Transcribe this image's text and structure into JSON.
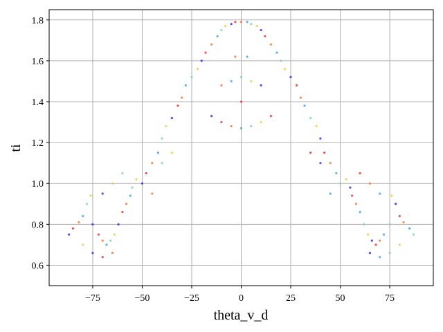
{
  "chart_data": {
    "type": "scatter",
    "title": "",
    "xlabel": "theta_v_d",
    "ylabel": "ti",
    "xlim": [
      -97,
      97
    ],
    "ylim": [
      0.5,
      1.85
    ],
    "grid": true,
    "xticks": [
      -75,
      -50,
      -25,
      0,
      25,
      50,
      75
    ],
    "xtick_labels": [
      "−75",
      "−50",
      "−25",
      "0",
      "25",
      "50",
      "75"
    ],
    "yticks": [
      0.6,
      0.8,
      1.0,
      1.2,
      1.4,
      1.6,
      1.8
    ],
    "ytick_labels": [
      "0.6",
      "0.8",
      "1.0",
      "1.2",
      "1.4",
      "1.6",
      "1.8"
    ],
    "colors": [
      "#3b2cf0",
      "#e83a2a",
      "#f07a3a",
      "#4aa3e8",
      "#7fd6b0",
      "#f2c94c"
    ],
    "points": [
      [
        -87,
        0.75
      ],
      [
        -85,
        0.78
      ],
      [
        -82,
        0.81
      ],
      [
        -80,
        0.84
      ],
      [
        -78,
        0.9
      ],
      [
        -76,
        0.94
      ],
      [
        -75,
        0.8
      ],
      [
        -72,
        0.75
      ],
      [
        -70,
        0.72
      ],
      [
        -68,
        0.7
      ],
      [
        -66,
        0.72
      ],
      [
        -64,
        0.75
      ],
      [
        -62,
        0.8
      ],
      [
        -60,
        0.86
      ],
      [
        -58,
        0.9
      ],
      [
        -56,
        0.94
      ],
      [
        -55,
        0.98
      ],
      [
        -53,
        1.02
      ],
      [
        -50,
        1.0
      ],
      [
        -48,
        1.05
      ],
      [
        -45,
        1.1
      ],
      [
        -42,
        1.15
      ],
      [
        -40,
        1.22
      ],
      [
        -38,
        1.28
      ],
      [
        -35,
        1.32
      ],
      [
        -32,
        1.38
      ],
      [
        -30,
        1.42
      ],
      [
        -28,
        1.48
      ],
      [
        -25,
        1.52
      ],
      [
        -22,
        1.56
      ],
      [
        -20,
        1.6
      ],
      [
        -18,
        1.64
      ],
      [
        -15,
        1.68
      ],
      [
        -12,
        1.72
      ],
      [
        -10,
        1.75
      ],
      [
        -8,
        1.77
      ],
      [
        -5,
        1.78
      ],
      [
        -3,
        1.79
      ],
      [
        0,
        1.79
      ],
      [
        3,
        1.79
      ],
      [
        5,
        1.78
      ],
      [
        8,
        1.77
      ],
      [
        10,
        1.75
      ],
      [
        12,
        1.72
      ],
      [
        15,
        1.68
      ],
      [
        18,
        1.64
      ],
      [
        20,
        1.6
      ],
      [
        22,
        1.56
      ],
      [
        25,
        1.52
      ],
      [
        28,
        1.48
      ],
      [
        30,
        1.42
      ],
      [
        32,
        1.38
      ],
      [
        35,
        1.32
      ],
      [
        38,
        1.28
      ],
      [
        40,
        1.22
      ],
      [
        42,
        1.15
      ],
      [
        45,
        1.1
      ],
      [
        48,
        1.05
      ],
      [
        50,
        1.0
      ],
      [
        53,
        1.02
      ],
      [
        55,
        0.98
      ],
      [
        56,
        0.94
      ],
      [
        58,
        0.9
      ],
      [
        60,
        0.86
      ],
      [
        62,
        0.8
      ],
      [
        64,
        0.75
      ],
      [
        66,
        0.72
      ],
      [
        68,
        0.7
      ],
      [
        70,
        0.72
      ],
      [
        72,
        0.75
      ],
      [
        75,
        0.8
      ],
      [
        76,
        0.94
      ],
      [
        78,
        0.9
      ],
      [
        80,
        0.84
      ],
      [
        82,
        0.81
      ],
      [
        85,
        0.78
      ],
      [
        87,
        0.75
      ],
      [
        -80,
        0.7
      ],
      [
        -75,
        0.66
      ],
      [
        -70,
        0.64
      ],
      [
        -65,
        0.66
      ],
      [
        70,
        0.64
      ],
      [
        75,
        0.66
      ],
      [
        80,
        0.7
      ],
      [
        65,
        0.66
      ],
      [
        -10,
        1.3
      ],
      [
        -5,
        1.28
      ],
      [
        0,
        1.27
      ],
      [
        5,
        1.28
      ],
      [
        10,
        1.3
      ],
      [
        -15,
        1.33
      ],
      [
        15,
        1.33
      ],
      [
        -10,
        1.48
      ],
      [
        -5,
        1.5
      ],
      [
        0,
        1.52
      ],
      [
        5,
        1.5
      ],
      [
        10,
        1.48
      ],
      [
        0,
        1.4
      ],
      [
        -3,
        1.62
      ],
      [
        3,
        1.62
      ],
      [
        -60,
        1.05
      ],
      [
        -65,
        1.0
      ],
      [
        -70,
        0.95
      ],
      [
        60,
        1.05
      ],
      [
        65,
        1.0
      ],
      [
        70,
        0.95
      ],
      [
        -40,
        1.1
      ],
      [
        -35,
        1.15
      ],
      [
        40,
        1.1
      ],
      [
        35,
        1.15
      ],
      [
        -45,
        0.95
      ],
      [
        45,
        0.95
      ]
    ]
  }
}
